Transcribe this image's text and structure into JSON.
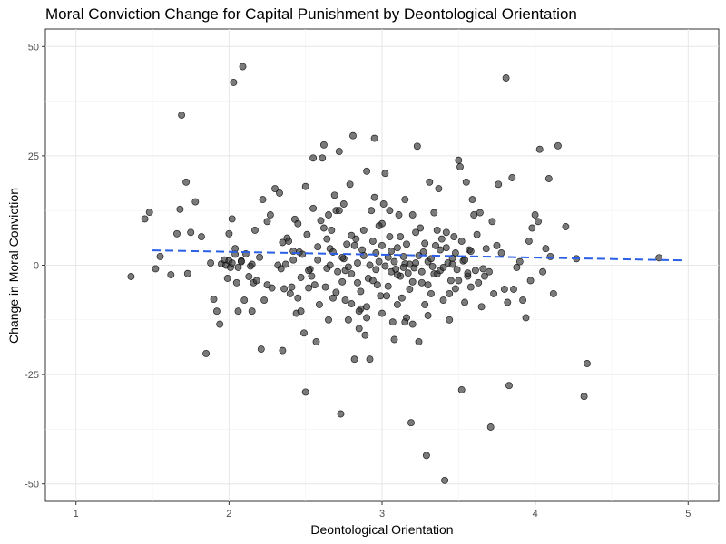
{
  "chart_data": {
    "type": "scatter",
    "title": "Moral Conviction Change for Capital Punishment by Deontological Orientation",
    "xlabel": "Deontological Orientation",
    "ylabel": "Change in Moral Conviction",
    "xlim": [
      0.8,
      5.2
    ],
    "ylim": [
      -54,
      54
    ],
    "x_ticks": [
      1,
      2,
      3,
      4,
      5
    ],
    "y_ticks": [
      -50,
      -25,
      0,
      25,
      50
    ],
    "x_tick_labels": [
      "1",
      "2",
      "3",
      "4",
      "5"
    ],
    "y_tick_labels": [
      "-50",
      "-25",
      "0",
      "25",
      "50"
    ],
    "grid": true,
    "legend": "none",
    "point_color": "#333333",
    "trend_color": "#2a5fe6",
    "trend_line": {
      "style": "dashed",
      "x": [
        1.5,
        4.97
      ],
      "y": [
        3.4,
        1.1
      ]
    },
    "points": [
      [
        1.36,
        -2.6
      ],
      [
        1.45,
        10.6
      ],
      [
        1.48,
        12.1
      ],
      [
        1.52,
        -0.8
      ],
      [
        1.55,
        2.0
      ],
      [
        1.62,
        -2.2
      ],
      [
        1.66,
        7.2
      ],
      [
        1.68,
        12.8
      ],
      [
        1.69,
        34.3
      ],
      [
        1.72,
        19.0
      ],
      [
        1.73,
        -1.9
      ],
      [
        1.75,
        7.5
      ],
      [
        1.78,
        14.5
      ],
      [
        1.82,
        6.5
      ],
      [
        1.85,
        -20.2
      ],
      [
        1.88,
        0.5
      ],
      [
        1.9,
        -7.8
      ],
      [
        1.92,
        -10.5
      ],
      [
        1.94,
        -13.5
      ],
      [
        1.95,
        0.3
      ],
      [
        1.97,
        1.2
      ],
      [
        1.98,
        0.0
      ],
      [
        1.99,
        -3.0
      ],
      [
        2.0,
        7.2
      ],
      [
        2.01,
        -0.5
      ],
      [
        2.02,
        10.6
      ],
      [
        2.03,
        41.8
      ],
      [
        2.04,
        3.8
      ],
      [
        2.05,
        -4.0
      ],
      [
        2.06,
        -10.5
      ],
      [
        2.08,
        1.0
      ],
      [
        2.09,
        45.4
      ],
      [
        2.1,
        -8.0
      ],
      [
        2.11,
        2.6
      ],
      [
        2.13,
        -2.6
      ],
      [
        2.14,
        -0.2
      ],
      [
        2.15,
        -10.5
      ],
      [
        2.16,
        -4.0
      ],
      [
        2.17,
        8.0
      ],
      [
        2.18,
        -3.5
      ],
      [
        2.2,
        1.8
      ],
      [
        2.21,
        -19.2
      ],
      [
        2.22,
        15.0
      ],
      [
        2.23,
        -8.0
      ],
      [
        2.25,
        10.0
      ],
      [
        2.27,
        11.5
      ],
      [
        2.28,
        -5.2
      ],
      [
        2.3,
        17.5
      ],
      [
        2.32,
        0.0
      ],
      [
        2.33,
        16.5
      ],
      [
        2.34,
        -0.8
      ],
      [
        2.35,
        -19.5
      ],
      [
        2.36,
        -5.4
      ],
      [
        2.37,
        0.2
      ],
      [
        2.38,
        6.2
      ],
      [
        2.39,
        5.5
      ],
      [
        2.4,
        -6.5
      ],
      [
        2.41,
        -5.0
      ],
      [
        2.42,
        1.2
      ],
      [
        2.43,
        10.5
      ],
      [
        2.44,
        -11.0
      ],
      [
        2.45,
        -7.5
      ],
      [
        2.46,
        3.0
      ],
      [
        2.47,
        -10.5
      ],
      [
        2.48,
        2.5
      ],
      [
        2.49,
        -15.5
      ],
      [
        2.5,
        18.0
      ],
      [
        2.5,
        -29.0
      ],
      [
        2.51,
        7.0
      ],
      [
        2.52,
        -5.2
      ],
      [
        2.53,
        -0.9
      ],
      [
        2.54,
        -2.5
      ],
      [
        2.55,
        24.5
      ],
      [
        2.56,
        -4.5
      ],
      [
        2.57,
        -17.5
      ],
      [
        2.58,
        1.2
      ],
      [
        2.59,
        -9.0
      ],
      [
        2.6,
        10.2
      ],
      [
        2.61,
        24.5
      ],
      [
        2.62,
        27.5
      ],
      [
        2.63,
        -5.0
      ],
      [
        2.64,
        -0.7
      ],
      [
        2.65,
        -12.5
      ],
      [
        2.66,
        3.8
      ],
      [
        2.67,
        8.0
      ],
      [
        2.68,
        -7.5
      ],
      [
        2.69,
        16.0
      ],
      [
        2.7,
        12.5
      ],
      [
        2.71,
        -1.5
      ],
      [
        2.72,
        26.0
      ],
      [
        2.73,
        -34.0
      ],
      [
        2.74,
        -3.8
      ],
      [
        2.75,
        1.5
      ],
      [
        2.76,
        -8.0
      ],
      [
        2.77,
        4.8
      ],
      [
        2.78,
        -12.5
      ],
      [
        2.79,
        18.5
      ],
      [
        2.8,
        -2.0
      ],
      [
        2.81,
        29.6
      ],
      [
        2.82,
        -21.5
      ],
      [
        2.83,
        6.0
      ],
      [
        2.84,
        -4.0
      ],
      [
        2.85,
        -14.5
      ],
      [
        2.86,
        -10.0
      ],
      [
        2.87,
        3.5
      ],
      [
        2.88,
        8.0
      ],
      [
        2.89,
        -16.0
      ],
      [
        2.9,
        21.5
      ],
      [
        2.91,
        -3.0
      ],
      [
        2.92,
        -21.5
      ],
      [
        2.93,
        12.5
      ],
      [
        2.94,
        5.5
      ],
      [
        2.95,
        29.0
      ],
      [
        2.96,
        -1.0
      ],
      [
        2.97,
        -4.5
      ],
      [
        2.98,
        0.8
      ],
      [
        2.99,
        -7.0
      ],
      [
        3.0,
        9.5
      ],
      [
        3.01,
        14.0
      ],
      [
        3.02,
        21.0
      ],
      [
        3.03,
        -7.0
      ],
      [
        3.04,
        1.8
      ],
      [
        3.05,
        6.5
      ],
      [
        3.06,
        -1.5
      ],
      [
        3.07,
        -13.0
      ],
      [
        3.08,
        -17.0
      ],
      [
        3.09,
        -0.9
      ],
      [
        3.1,
        4.0
      ],
      [
        3.11,
        11.5
      ],
      [
        3.12,
        -2.5
      ],
      [
        3.13,
        -7.5
      ],
      [
        3.14,
        2.0
      ],
      [
        3.15,
        0.3
      ],
      [
        3.16,
        -12.0
      ],
      [
        3.17,
        -1.8
      ],
      [
        3.18,
        -5.5
      ],
      [
        3.19,
        -36.0
      ],
      [
        3.2,
        11.5
      ],
      [
        3.21,
        -0.6
      ],
      [
        3.22,
        0.5
      ],
      [
        3.23,
        27.2
      ],
      [
        3.24,
        -17.5
      ],
      [
        3.25,
        8.5
      ],
      [
        3.26,
        -4.0
      ],
      [
        3.27,
        3.0
      ],
      [
        3.28,
        -9.0
      ],
      [
        3.29,
        -43.5
      ],
      [
        3.3,
        0.8
      ],
      [
        3.31,
        19.0
      ],
      [
        3.32,
        -6.5
      ],
      [
        3.33,
        -0.3
      ],
      [
        3.34,
        12.0
      ],
      [
        3.35,
        4.5
      ],
      [
        3.36,
        -2.0
      ],
      [
        3.37,
        17.5
      ],
      [
        3.38,
        -1.2
      ],
      [
        3.39,
        6.0
      ],
      [
        3.4,
        -8.0
      ],
      [
        3.41,
        -49.2
      ],
      [
        3.42,
        7.5
      ],
      [
        3.43,
        0.5
      ],
      [
        3.44,
        -12.5
      ],
      [
        3.45,
        -3.5
      ],
      [
        3.46,
        1.6
      ],
      [
        3.47,
        6.5
      ],
      [
        3.48,
        -5.4
      ],
      [
        3.49,
        -1.0
      ],
      [
        3.5,
        24.0
      ],
      [
        3.51,
        22.5
      ],
      [
        3.52,
        -28.5
      ],
      [
        3.53,
        1.0
      ],
      [
        3.54,
        -8.5
      ],
      [
        3.55,
        19.0
      ],
      [
        3.56,
        -2.5
      ],
      [
        3.57,
        3.5
      ],
      [
        3.58,
        -5.0
      ],
      [
        3.59,
        15.0
      ],
      [
        3.6,
        11.5
      ],
      [
        3.61,
        -1.2
      ],
      [
        3.62,
        7.0
      ],
      [
        3.63,
        -4.0
      ],
      [
        3.64,
        12.0
      ],
      [
        3.65,
        -9.5
      ],
      [
        3.66,
        -0.8
      ],
      [
        3.67,
        -2.5
      ],
      [
        3.68,
        3.8
      ],
      [
        3.7,
        -1.5
      ],
      [
        3.71,
        -37.0
      ],
      [
        3.72,
        10.0
      ],
      [
        3.73,
        -6.5
      ],
      [
        3.75,
        4.5
      ],
      [
        3.76,
        18.5
      ],
      [
        3.78,
        2.8
      ],
      [
        3.8,
        -5.5
      ],
      [
        3.81,
        42.8
      ],
      [
        3.82,
        -8.5
      ],
      [
        3.83,
        -27.5
      ],
      [
        3.85,
        20.0
      ],
      [
        3.86,
        -5.5
      ],
      [
        3.88,
        -0.5
      ],
      [
        3.9,
        0.8
      ],
      [
        3.92,
        -8.0
      ],
      [
        3.94,
        -12.0
      ],
      [
        3.96,
        5.5
      ],
      [
        3.97,
        -3.5
      ],
      [
        3.98,
        8.5
      ],
      [
        4.0,
        11.5
      ],
      [
        4.02,
        10.0
      ],
      [
        4.03,
        26.5
      ],
      [
        4.05,
        -1.5
      ],
      [
        4.07,
        3.8
      ],
      [
        4.09,
        19.8
      ],
      [
        4.1,
        2.0
      ],
      [
        4.12,
        -6.5
      ],
      [
        4.15,
        27.3
      ],
      [
        4.2,
        8.8
      ],
      [
        4.27,
        1.5
      ],
      [
        4.32,
        -30.0
      ],
      [
        4.34,
        -22.5
      ],
      [
        4.81,
        1.7
      ],
      [
        2.0,
        1.0
      ],
      [
        2.02,
        0.5
      ],
      [
        2.04,
        2.5
      ],
      [
        2.06,
        -0.5
      ],
      [
        2.08,
        0.8
      ],
      [
        2.15,
        0.2
      ],
      [
        2.25,
        -4.5
      ],
      [
        2.35,
        5.2
      ],
      [
        2.42,
        3.2
      ],
      [
        2.47,
        -2.8
      ],
      [
        2.52,
        -1.2
      ],
      [
        2.58,
        4.2
      ],
      [
        2.62,
        8.5
      ],
      [
        2.64,
        6.0
      ],
      [
        2.66,
        0.0
      ],
      [
        2.68,
        3.0
      ],
      [
        2.72,
        12.5
      ],
      [
        2.74,
        1.8
      ],
      [
        2.76,
        -1.2
      ],
      [
        2.78,
        -0.4
      ],
      [
        2.8,
        6.8
      ],
      [
        2.82,
        4.5
      ],
      [
        2.84,
        0.5
      ],
      [
        2.86,
        -6.0
      ],
      [
        2.88,
        2.2
      ],
      [
        2.9,
        -9.5
      ],
      [
        2.92,
        0.0
      ],
      [
        2.94,
        -3.5
      ],
      [
        2.96,
        2.8
      ],
      [
        2.98,
        9.0
      ],
      [
        3.0,
        4.5
      ],
      [
        3.02,
        -0.2
      ],
      [
        3.04,
        -4.8
      ],
      [
        3.06,
        3.2
      ],
      [
        3.08,
        0.8
      ],
      [
        3.1,
        -2.2
      ],
      [
        3.12,
        6.5
      ],
      [
        3.14,
        -0.5
      ],
      [
        3.16,
        4.8
      ],
      [
        3.18,
        0.2
      ],
      [
        3.2,
        -3.8
      ],
      [
        3.22,
        7.5
      ],
      [
        3.24,
        2.2
      ],
      [
        3.26,
        -1.5
      ],
      [
        3.28,
        5.0
      ],
      [
        3.3,
        -4.5
      ],
      [
        3.32,
        1.5
      ],
      [
        3.34,
        -2.0
      ],
      [
        3.36,
        8.0
      ],
      [
        3.38,
        3.5
      ],
      [
        3.4,
        -0.5
      ],
      [
        3.42,
        4.0
      ],
      [
        3.44,
        -6.5
      ],
      [
        3.46,
        0.2
      ],
      [
        3.48,
        2.8
      ],
      [
        3.5,
        -3.5
      ],
      [
        3.52,
        5.5
      ],
      [
        3.54,
        1.2
      ],
      [
        3.56,
        -1.8
      ],
      [
        3.58,
        3.2
      ],
      [
        2.7,
        -6.2
      ],
      [
        2.8,
        -8.8
      ],
      [
        2.9,
        -12.0
      ],
      [
        3.0,
        -11.0
      ],
      [
        3.1,
        -9.0
      ],
      [
        3.2,
        -13.5
      ],
      [
        3.3,
        -11.5
      ],
      [
        3.15,
        -13.0
      ],
      [
        2.85,
        -10.5
      ],
      [
        2.95,
        15.5
      ],
      [
        3.05,
        12.5
      ],
      [
        3.15,
        15.0
      ],
      [
        2.75,
        14.0
      ],
      [
        2.65,
        11.5
      ],
      [
        2.55,
        13.0
      ],
      [
        2.45,
        9.5
      ]
    ]
  }
}
